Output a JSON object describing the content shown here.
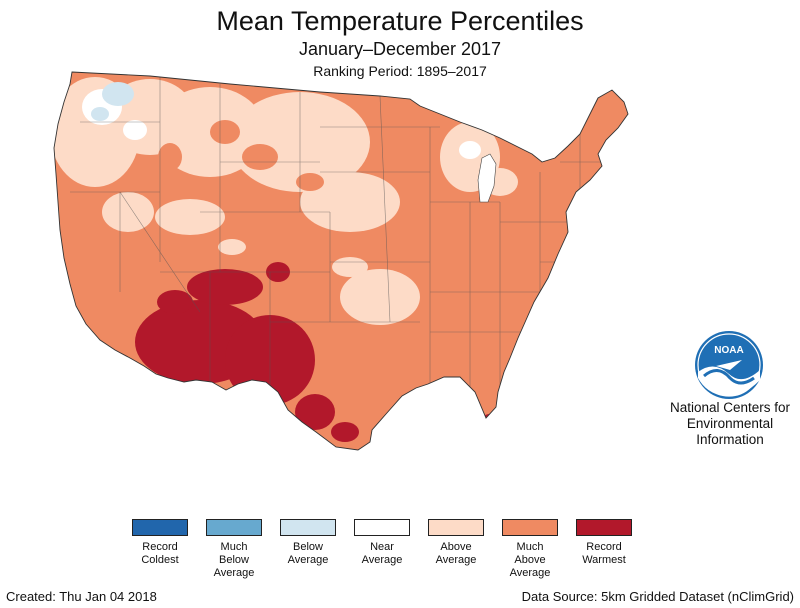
{
  "header": {
    "title": "Mean Temperature Percentiles",
    "subtitle": "January–December 2017",
    "ranking": "Ranking Period: 1895–2017"
  },
  "colors": {
    "record_coldest": "#2166ac",
    "much_below": "#67a9cf",
    "below": "#d1e5f0",
    "near": "#ffffff",
    "above": "#fddbc7",
    "much_above": "#ef8a62",
    "record_warmest": "#b2182b",
    "noaa_blue": "#1f6fb5"
  },
  "logo": {
    "icon": "noaa-logo-icon",
    "text": "NOAA"
  },
  "org": {
    "line1": "National Centers for",
    "line2": "Environmental",
    "line3": "Information"
  },
  "legend": [
    {
      "color": "#2166ac",
      "lines": [
        "Record",
        "Coldest"
      ]
    },
    {
      "color": "#67a9cf",
      "lines": [
        "Much",
        "Below",
        "Average"
      ]
    },
    {
      "color": "#d1e5f0",
      "lines": [
        "Below",
        "Average"
      ]
    },
    {
      "color": "#ffffff",
      "lines": [
        "Near",
        "Average"
      ]
    },
    {
      "color": "#fddbc7",
      "lines": [
        "Above",
        "Average"
      ]
    },
    {
      "color": "#ef8a62",
      "lines": [
        "Much",
        "Above",
        "Average"
      ]
    },
    {
      "color": "#b2182b",
      "lines": [
        "Record",
        "Warmest"
      ]
    }
  ],
  "footer": {
    "created": "Created: Thu Jan 04 2018",
    "source": "Data Source: 5km Gridded Dataset (nClimGrid)"
  }
}
